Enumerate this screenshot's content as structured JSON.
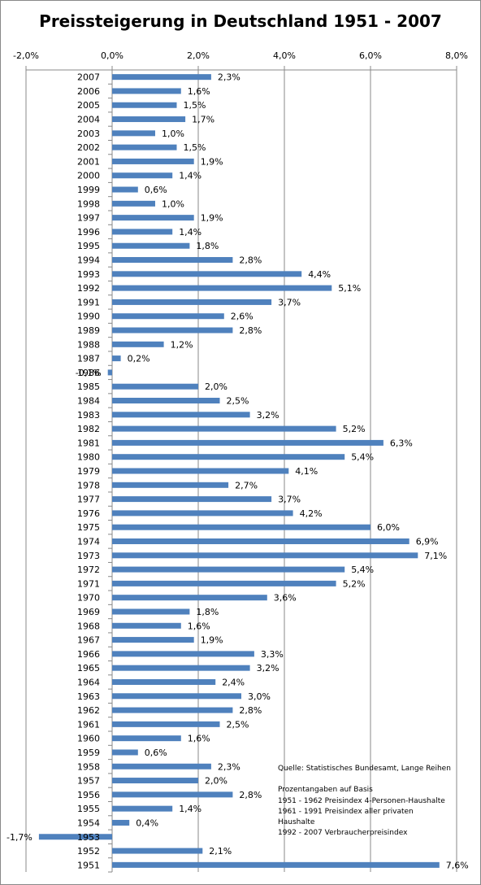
{
  "chart_data": {
    "type": "bar",
    "orientation": "horizontal",
    "title": "Preissteigerung in Deutschland 1951 - 2007",
    "x_ticks": [
      "-2,0%",
      "0,0%",
      "2,0%",
      "4,0%",
      "6,0%",
      "8,0%"
    ],
    "xlim": [
      -2,
      8
    ],
    "grid": "vertical",
    "bar_color": "#4f81bd",
    "categories": [
      "2007",
      "2006",
      "2005",
      "2004",
      "2003",
      "2002",
      "2001",
      "2000",
      "1999",
      "1998",
      "1997",
      "1996",
      "1995",
      "1994",
      "1993",
      "1992",
      "1991",
      "1990",
      "1989",
      "1988",
      "1987",
      "1986",
      "1985",
      "1984",
      "1983",
      "1982",
      "1981",
      "1980",
      "1979",
      "1978",
      "1977",
      "1976",
      "1975",
      "1974",
      "1973",
      "1972",
      "1971",
      "1970",
      "1969",
      "1968",
      "1967",
      "1966",
      "1965",
      "1964",
      "1963",
      "1962",
      "1961",
      "1960",
      "1959",
      "1958",
      "1957",
      "1956",
      "1955",
      "1954",
      "1953",
      "1952",
      "1951"
    ],
    "values": [
      2.3,
      1.6,
      1.5,
      1.7,
      1.0,
      1.5,
      1.9,
      1.4,
      0.6,
      1.0,
      1.9,
      1.4,
      1.8,
      2.8,
      4.4,
      5.1,
      3.7,
      2.6,
      2.8,
      1.2,
      0.2,
      -0.1,
      2.0,
      2.5,
      3.2,
      5.2,
      6.3,
      5.4,
      4.1,
      2.7,
      3.7,
      4.2,
      6.0,
      6.9,
      7.1,
      5.4,
      5.2,
      3.6,
      1.8,
      1.6,
      1.9,
      3.3,
      3.2,
      2.4,
      3.0,
      2.8,
      2.5,
      1.6,
      0.6,
      2.3,
      2.0,
      2.8,
      1.4,
      0.4,
      -1.7,
      2.1,
      7.6
    ],
    "value_labels": [
      "2,3%",
      "1,6%",
      "1,5%",
      "1,7%",
      "1,0%",
      "1,5%",
      "1,9%",
      "1,4%",
      "0,6%",
      "1,0%",
      "1,9%",
      "1,4%",
      "1,8%",
      "2,8%",
      "4,4%",
      "5,1%",
      "3,7%",
      "2,6%",
      "2,8%",
      "1,2%",
      "0,2%",
      "-0,1%",
      "2,0%",
      "2,5%",
      "3,2%",
      "5,2%",
      "6,3%",
      "5,4%",
      "4,1%",
      "2,7%",
      "3,7%",
      "4,2%",
      "6,0%",
      "6,9%",
      "7,1%",
      "5,4%",
      "5,2%",
      "3,6%",
      "1,8%",
      "1,6%",
      "1,9%",
      "3,3%",
      "3,2%",
      "2,4%",
      "3,0%",
      "2,8%",
      "2,5%",
      "1,6%",
      "0,6%",
      "2,3%",
      "2,0%",
      "2,8%",
      "1,4%",
      "0,4%",
      "-1,7%",
      "2,1%",
      "7,6%"
    ]
  },
  "notes": {
    "source": "Quelle: Statistisches Bundesamt, Lange Reihen",
    "basis_heading": "Prozentangaben auf Basis",
    "line1": "1951 - 1962 Preisindex 4-Personen-Haushalte",
    "line2": "1961 - 1991 Preisindex aller privaten",
    "line3": "Haushalte",
    "line4": "1992 - 2007 Verbraucherpreisindex"
  }
}
